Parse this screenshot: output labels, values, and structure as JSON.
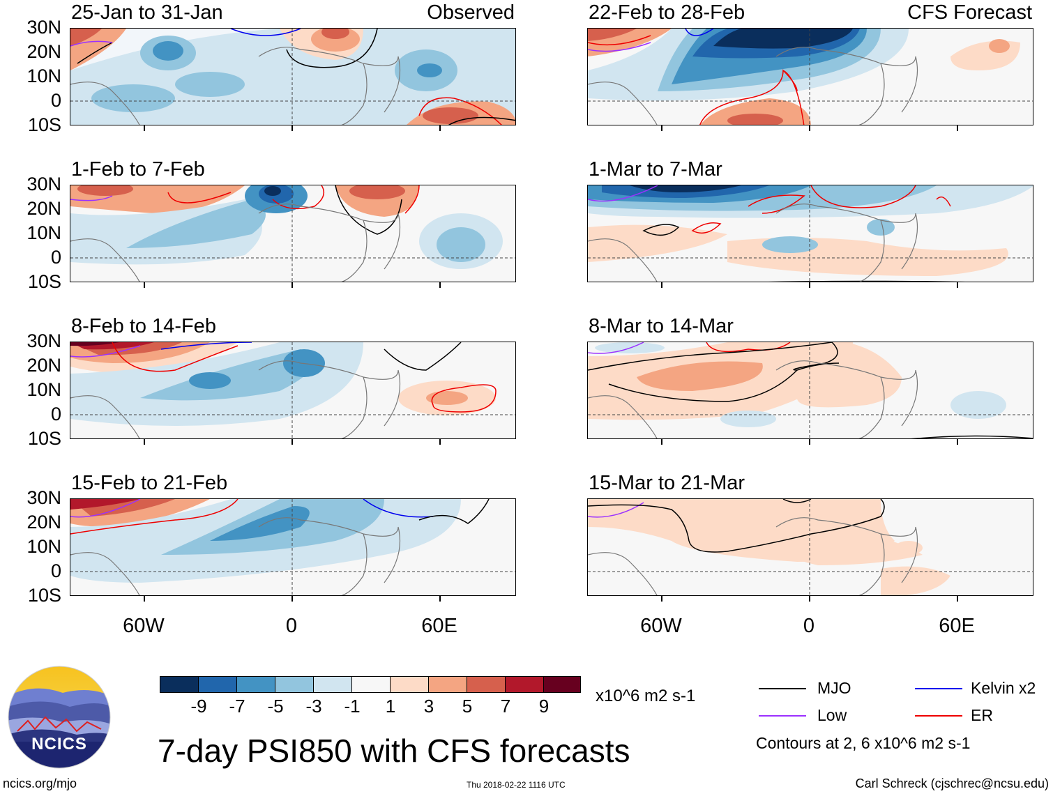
{
  "panels": [
    {
      "title": "25-Jan to 31-Jan",
      "tag": "Observed"
    },
    {
      "title": "1-Feb to 7-Feb"
    },
    {
      "title": "8-Feb to 14-Feb"
    },
    {
      "title": "15-Feb to 21-Feb"
    },
    {
      "title": "22-Feb to 28-Feb",
      "tag": "CFS Forecast"
    },
    {
      "title": "1-Mar to 7-Mar"
    },
    {
      "title": "8-Mar to 14-Mar"
    },
    {
      "title": "15-Mar to 21-Mar"
    }
  ],
  "lat_labels": [
    "30N",
    "20N",
    "10N",
    "0",
    "10S"
  ],
  "lon_labels": [
    "60W",
    "0",
    "60E"
  ],
  "colorbar": {
    "colors": [
      "#0a2e5c",
      "#2166ac",
      "#4393c3",
      "#92c5de",
      "#d1e5f0",
      "#f7f7f7",
      "#fddbc7",
      "#f4a582",
      "#d6604d",
      "#b2182b",
      "#67001f"
    ],
    "labels": [
      "-9",
      "-7",
      "-5",
      "-3",
      "-1",
      "1",
      "3",
      "5",
      "7",
      "9"
    ],
    "units": "x10^6 m2 s-1"
  },
  "legend": {
    "items": [
      {
        "label": "MJO",
        "color": "#000000"
      },
      {
        "label": "Kelvin x2",
        "color": "#0000ee"
      },
      {
        "label": "Low",
        "color": "#9b30ff"
      },
      {
        "label": "ER",
        "color": "#ee0000"
      }
    ],
    "note": "Contours at 2, 6 x10^6 m2 s-1"
  },
  "footer": {
    "title": "7-day PSI850 with CFS forecasts",
    "logo_text": "NCICS",
    "url": "ncics.org/mjo",
    "timestamp": "Thu 2018-02-22 1116 UTC",
    "credit": "Carl Schreck (cjschrec@ncsu.edu)"
  }
}
